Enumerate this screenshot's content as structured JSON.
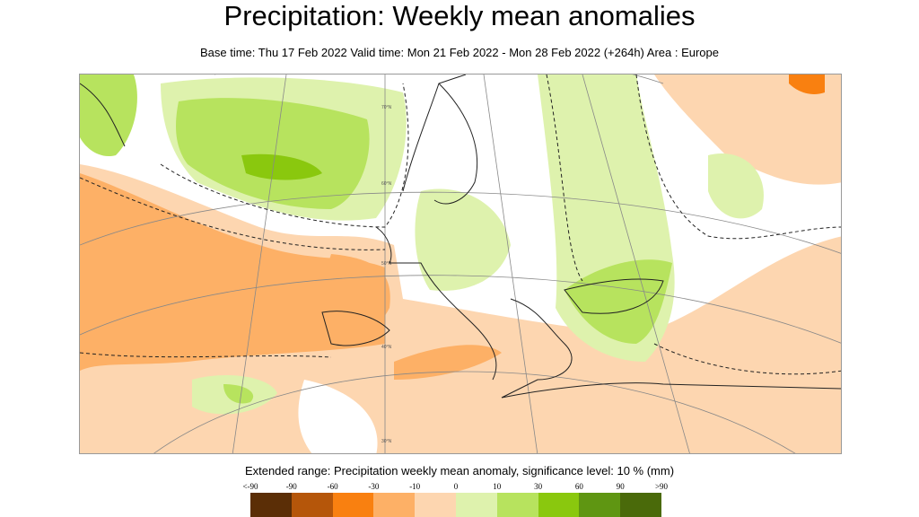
{
  "title": "Precipitation: Weekly mean anomalies",
  "subtitle": "Base time: Thu 17 Feb 2022 Valid time: Mon 21 Feb 2022 - Mon 28 Feb 2022 (+264h) Area : Europe",
  "map": {
    "area": "Europe",
    "latitude_labels": [
      "70°N",
      "60°N",
      "50°N",
      "40°N",
      "30°N"
    ],
    "significance_contour": "dashed",
    "colors": {
      "ocean_bg": "#ffffff",
      "coast": "#222222",
      "grid": "#888888"
    }
  },
  "legend": {
    "title": "Extended range: Precipitation weekly mean anomaly, significance level: 10 % (mm)",
    "ticks": [
      "<-90",
      "-90",
      "-60",
      "-30",
      "-10",
      "0",
      "10",
      "30",
      "60",
      "90",
      ">90"
    ],
    "colors": [
      "#5b2e06",
      "#b5560a",
      "#f98010",
      "#fdb066",
      "#fdd6b0",
      "#def2ad",
      "#b7e35e",
      "#8ac80e",
      "#5f9612",
      "#4a6a0a"
    ]
  }
}
